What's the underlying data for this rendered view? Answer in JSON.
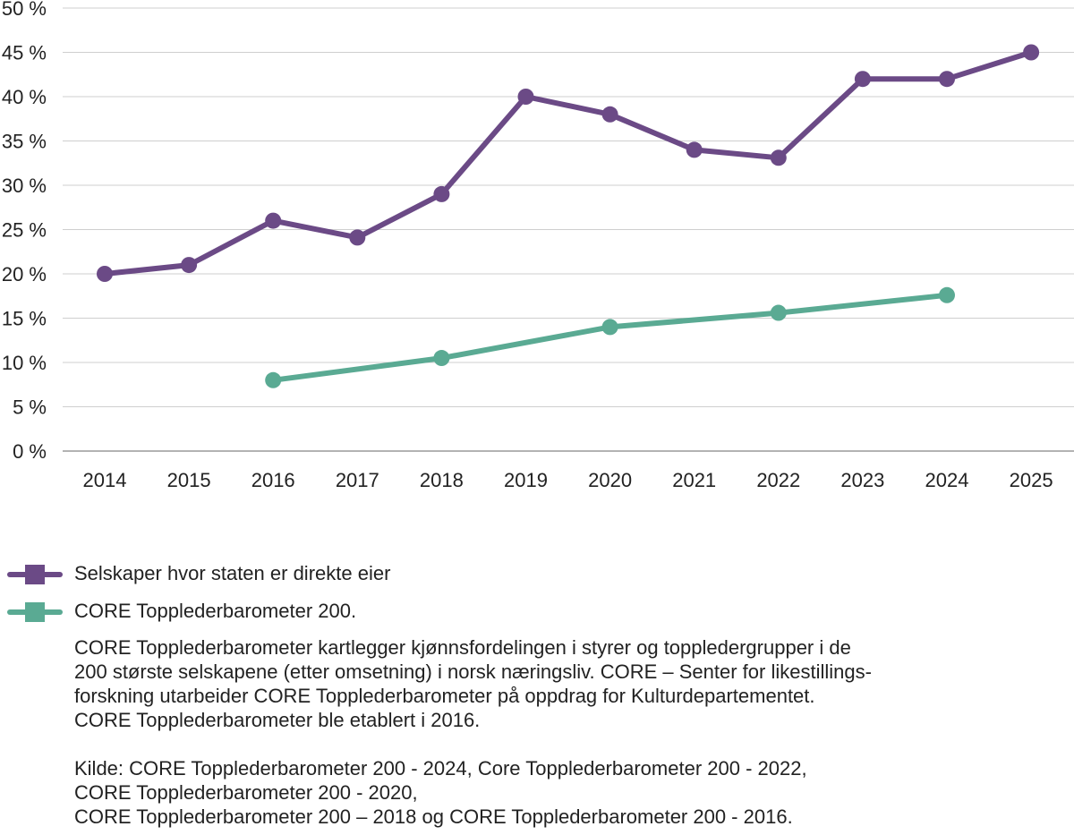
{
  "chart_data": {
    "type": "line",
    "x": [
      "2014",
      "2015",
      "2016",
      "2017",
      "2018",
      "2019",
      "2020",
      "2021",
      "2022",
      "2023",
      "2024",
      "2025"
    ],
    "ylim": [
      0,
      50
    ],
    "yticks": [
      "0 %",
      "5 %",
      "10 %",
      "15 %",
      "20 %",
      "25 %",
      "30 %",
      "35 %",
      "40 %",
      "45 %",
      "50 %"
    ],
    "ytick_values": [
      0,
      5,
      10,
      15,
      20,
      25,
      30,
      35,
      40,
      45,
      50
    ],
    "grid": true,
    "legend_position": "bottom-left",
    "series": [
      {
        "name": "Selskaper hvor staten er direkte eier",
        "color": "#6b4a86",
        "points": [
          {
            "x": "2014",
            "y": 20
          },
          {
            "x": "2015",
            "y": 21
          },
          {
            "x": "2016",
            "y": 26
          },
          {
            "x": "2017",
            "y": 24.1
          },
          {
            "x": "2018",
            "y": 29
          },
          {
            "x": "2019",
            "y": 40
          },
          {
            "x": "2020",
            "y": 38
          },
          {
            "x": "2021",
            "y": 34
          },
          {
            "x": "2022",
            "y": 33.1
          },
          {
            "x": "2023",
            "y": 42
          },
          {
            "x": "2024",
            "y": 42
          },
          {
            "x": "2025",
            "y": 45
          }
        ]
      },
      {
        "name": "CORE Topplederbarometer 200.",
        "color": "#5aaa93",
        "points": [
          {
            "x": "2016",
            "y": 8
          },
          {
            "x": "2018",
            "y": 10.5
          },
          {
            "x": "2020",
            "y": 14
          },
          {
            "x": "2022",
            "y": 15.6
          },
          {
            "x": "2024",
            "y": 17.6
          }
        ]
      }
    ]
  },
  "notes": {
    "description_lines": [
      "CORE Topplederbarometer kartlegger kjønnsfordelingen i styrer og toppledergrupper i de",
      "200 største selskapene (etter omsetning) i norsk næringsliv. CORE – Senter for likestillings-",
      "forskning utarbeider CORE Topplederbarometer på oppdrag for Kulturdepartementet.",
      "CORE Topplederbarometer ble etablert i 2016."
    ],
    "source_lines": [
      "Kilde: CORE Topplederbarometer 200 - 2024, Core Topplederbarometer 200 - 2022,",
      "CORE Topplederbarometer 200 - 2020,",
      "CORE Topplederbarometer 200 – 2018 og CORE Topplederbarometer 200 - 2016."
    ]
  }
}
